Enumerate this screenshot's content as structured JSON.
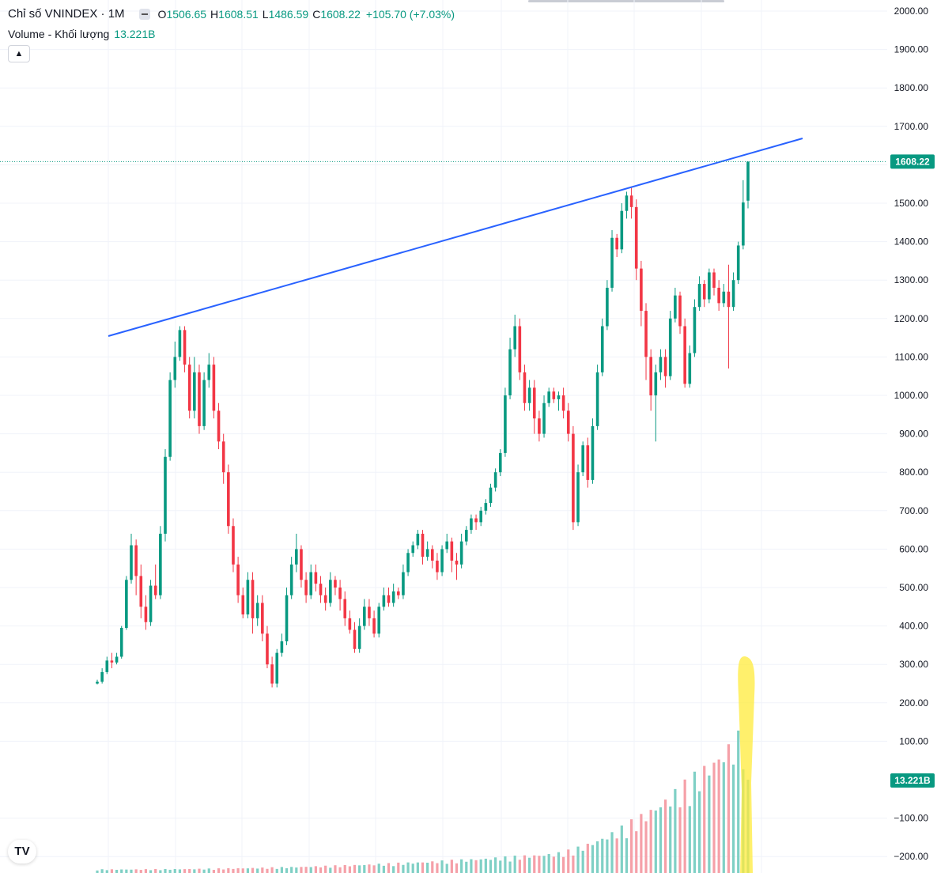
{
  "legend": {
    "title": "Chỉ số VNINDEX · 1M",
    "open_label": "O",
    "open": "1506.65",
    "high_label": "H",
    "high": "1608.51",
    "low_label": "L",
    "low": "1486.59",
    "close_label": "C",
    "close": "1608.22",
    "change": "+105.70 (+7.03%)"
  },
  "volume_legend": {
    "label": "Volume - Khối lượng",
    "value": "13.221B"
  },
  "collapse_icon": "chevron-up-icon",
  "logo": {
    "name": "tradingview-logo-icon",
    "text": "TV"
  },
  "colors": {
    "up": "#089981",
    "down": "#f23645",
    "trendline": "#2962ff",
    "highlight": "#ffeb3b",
    "volume_up": "#7fd0c5",
    "volume_down": "#f5a0a8"
  },
  "chart_data": {
    "type": "candlestick",
    "symbol": "Chỉ số VNINDEX",
    "interval": "1M",
    "price_axis": {
      "ticks": [
        "2000.00",
        "1900.00",
        "1800.00",
        "1700.00",
        "1600.00",
        "1500.00",
        "1400.00",
        "1300.00",
        "1200.00",
        "1100.00",
        "1000.00",
        "900.00",
        "800.00",
        "700.00",
        "600.00",
        "500.00",
        "400.00",
        "300.00",
        "200.00",
        "100.00",
        "−100.00",
        "−200.00"
      ],
      "range": [
        -224,
        2025
      ]
    },
    "last_price_label": "1608.22",
    "last_volume_label": "13.221B",
    "grid": true,
    "candles_approx": [
      [
        250,
        255,
        248,
        260
      ],
      [
        255,
        280,
        250,
        290
      ],
      [
        280,
        310,
        275,
        320
      ],
      [
        310,
        305,
        290,
        330
      ],
      [
        305,
        320,
        300,
        330
      ],
      [
        320,
        395,
        315,
        400
      ],
      [
        395,
        520,
        390,
        530
      ],
      [
        520,
        610,
        510,
        640
      ],
      [
        610,
        530,
        480,
        625
      ],
      [
        530,
        450,
        420,
        560
      ],
      [
        450,
        410,
        390,
        480
      ],
      [
        410,
        505,
        400,
        520
      ],
      [
        505,
        480,
        470,
        560
      ],
      [
        480,
        640,
        470,
        660
      ],
      [
        640,
        840,
        620,
        860
      ],
      [
        840,
        1040,
        830,
        1060
      ],
      [
        1040,
        1100,
        1020,
        1140
      ],
      [
        1100,
        1170,
        1090,
        1180
      ],
      [
        1170,
        1080,
        1060,
        1180
      ],
      [
        1080,
        960,
        940,
        1100
      ],
      [
        960,
        1060,
        940,
        1100
      ],
      [
        1060,
        920,
        900,
        1080
      ],
      [
        920,
        1040,
        910,
        1060
      ],
      [
        1040,
        1080,
        1020,
        1110
      ],
      [
        1080,
        960,
        940,
        1100
      ],
      [
        960,
        880,
        860,
        980
      ],
      [
        880,
        800,
        770,
        900
      ],
      [
        800,
        660,
        640,
        820
      ],
      [
        660,
        560,
        540,
        680
      ],
      [
        560,
        480,
        460,
        580
      ],
      [
        480,
        430,
        420,
        500
      ],
      [
        430,
        520,
        420,
        540
      ],
      [
        520,
        420,
        380,
        540
      ],
      [
        420,
        460,
        400,
        480
      ],
      [
        460,
        380,
        360,
        480
      ],
      [
        380,
        300,
        290,
        400
      ],
      [
        300,
        250,
        240,
        320
      ],
      [
        250,
        330,
        240,
        340
      ],
      [
        330,
        360,
        320,
        380
      ],
      [
        360,
        480,
        350,
        500
      ],
      [
        480,
        560,
        470,
        580
      ],
      [
        560,
        600,
        540,
        640
      ],
      [
        600,
        520,
        500,
        610
      ],
      [
        520,
        480,
        460,
        540
      ],
      [
        480,
        540,
        470,
        560
      ],
      [
        540,
        510,
        490,
        560
      ],
      [
        510,
        480,
        460,
        530
      ],
      [
        480,
        460,
        440,
        500
      ],
      [
        460,
        520,
        450,
        540
      ],
      [
        520,
        500,
        480,
        530
      ],
      [
        500,
        470,
        440,
        520
      ],
      [
        470,
        420,
        400,
        490
      ],
      [
        420,
        390,
        380,
        440
      ],
      [
        390,
        340,
        330,
        410
      ],
      [
        340,
        400,
        330,
        420
      ],
      [
        400,
        450,
        390,
        470
      ],
      [
        450,
        420,
        400,
        470
      ],
      [
        420,
        380,
        370,
        440
      ],
      [
        380,
        450,
        370,
        460
      ],
      [
        450,
        480,
        440,
        500
      ],
      [
        480,
        460,
        450,
        500
      ],
      [
        460,
        490,
        450,
        510
      ],
      [
        490,
        480,
        470,
        500
      ],
      [
        480,
        540,
        470,
        560
      ],
      [
        540,
        590,
        530,
        600
      ],
      [
        590,
        610,
        580,
        620
      ],
      [
        610,
        640,
        600,
        650
      ],
      [
        640,
        580,
        560,
        650
      ],
      [
        580,
        600,
        570,
        620
      ],
      [
        600,
        570,
        550,
        610
      ],
      [
        570,
        540,
        520,
        590
      ],
      [
        540,
        600,
        530,
        610
      ],
      [
        600,
        620,
        590,
        640
      ],
      [
        620,
        570,
        540,
        630
      ],
      [
        570,
        560,
        520,
        590
      ],
      [
        560,
        620,
        550,
        640
      ],
      [
        620,
        650,
        610,
        660
      ],
      [
        650,
        680,
        640,
        690
      ],
      [
        680,
        670,
        650,
        690
      ],
      [
        670,
        700,
        660,
        710
      ],
      [
        700,
        720,
        690,
        730
      ],
      [
        720,
        760,
        710,
        770
      ],
      [
        760,
        800,
        750,
        810
      ],
      [
        800,
        850,
        790,
        860
      ],
      [
        850,
        1000,
        840,
        1020
      ],
      [
        1000,
        1120,
        990,
        1150
      ],
      [
        1120,
        1180,
        1100,
        1210
      ],
      [
        1180,
        1060,
        1040,
        1200
      ],
      [
        1060,
        980,
        960,
        1080
      ],
      [
        980,
        1020,
        960,
        1040
      ],
      [
        1020,
        940,
        900,
        1040
      ],
      [
        940,
        900,
        880,
        960
      ],
      [
        900,
        980,
        890,
        1000
      ],
      [
        980,
        1010,
        970,
        1020
      ],
      [
        1010,
        990,
        980,
        1020
      ],
      [
        990,
        1000,
        960,
        1010
      ],
      [
        1000,
        960,
        940,
        1020
      ],
      [
        960,
        900,
        880,
        980
      ],
      [
        900,
        670,
        650,
        920
      ],
      [
        670,
        800,
        660,
        820
      ],
      [
        800,
        870,
        790,
        880
      ],
      [
        870,
        780,
        760,
        890
      ],
      [
        780,
        920,
        770,
        940
      ],
      [
        920,
        1060,
        910,
        1080
      ],
      [
        1060,
        1180,
        1050,
        1200
      ],
      [
        1180,
        1280,
        1170,
        1300
      ],
      [
        1280,
        1410,
        1270,
        1430
      ],
      [
        1410,
        1380,
        1360,
        1420
      ],
      [
        1380,
        1480,
        1370,
        1500
      ],
      [
        1480,
        1520,
        1460,
        1530
      ],
      [
        1520,
        1490,
        1460,
        1540
      ],
      [
        1490,
        1330,
        1300,
        1510
      ],
      [
        1330,
        1220,
        1180,
        1350
      ],
      [
        1220,
        1100,
        1040,
        1240
      ],
      [
        1100,
        1000,
        960,
        1120
      ],
      [
        1000,
        1060,
        880,
        1080
      ],
      [
        1060,
        1100,
        1040,
        1120
      ],
      [
        1100,
        1050,
        1020,
        1120
      ],
      [
        1050,
        1200,
        1040,
        1220
      ],
      [
        1200,
        1260,
        1190,
        1280
      ],
      [
        1260,
        1180,
        1160,
        1270
      ],
      [
        1180,
        1030,
        1020,
        1200
      ],
      [
        1030,
        1110,
        1020,
        1130
      ],
      [
        1110,
        1230,
        1100,
        1250
      ],
      [
        1230,
        1290,
        1220,
        1310
      ],
      [
        1290,
        1250,
        1230,
        1300
      ],
      [
        1250,
        1320,
        1240,
        1330
      ],
      [
        1320,
        1280,
        1260,
        1330
      ],
      [
        1280,
        1240,
        1220,
        1300
      ],
      [
        1240,
        1270,
        1230,
        1290
      ],
      [
        1270,
        1230,
        1070,
        1340
      ],
      [
        1230,
        1300,
        1220,
        1320
      ],
      [
        1300,
        1390,
        1290,
        1400
      ],
      [
        1390,
        1502,
        1380,
        1560
      ],
      [
        1506.65,
        1608.22,
        1486.59,
        1608.51
      ]
    ],
    "annotations": [
      "ascending trendline across the 2018 and 2022 highs",
      "yellow highlight over the latest volume bar"
    ]
  }
}
